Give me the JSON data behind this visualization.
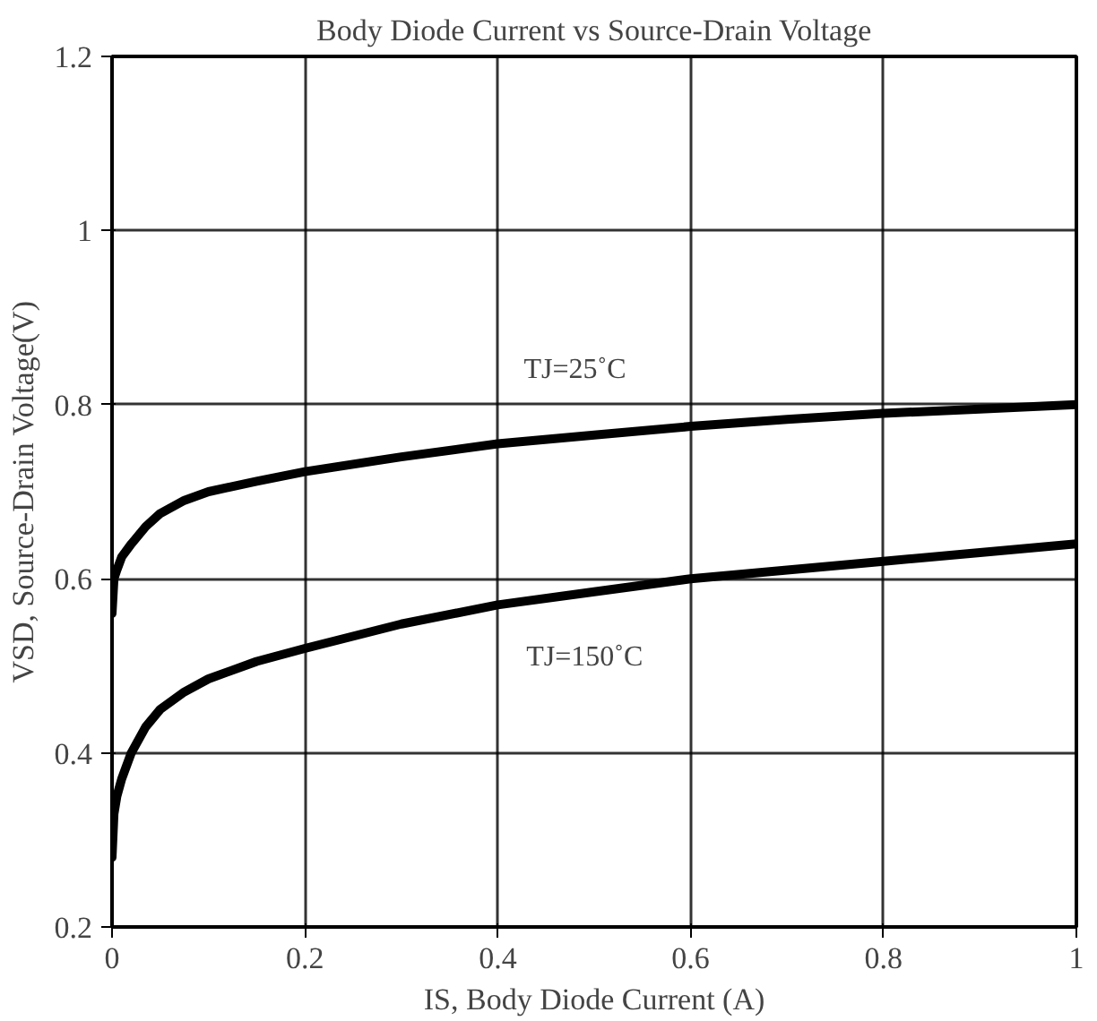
{
  "chart_data": {
    "type": "line",
    "title": "Body Diode Current vs Source-Drain Voltage",
    "xlabel": "IS, Body Diode Current (A)",
    "ylabel": "VSD, Source-Drain Voltage(V)",
    "xlim": [
      0,
      1
    ],
    "ylim": [
      0.2,
      1.2
    ],
    "xticks": [
      0,
      0.2,
      0.4,
      0.6,
      0.8,
      1
    ],
    "yticks": [
      0.2,
      0.4,
      0.6,
      0.8,
      1,
      1.2
    ],
    "grid": true,
    "series": [
      {
        "color": "#000000",
        "x": [
          0,
          0.002,
          0.005,
          0.01,
          0.02,
          0.035,
          0.05,
          0.075,
          0.1,
          0.15,
          0.2,
          0.3,
          0.4,
          0.5,
          0.6,
          0.7,
          0.8,
          0.9,
          1.0
        ],
        "values": [
          0.56,
          0.6,
          0.61,
          0.625,
          0.64,
          0.66,
          0.675,
          0.69,
          0.7,
          0.712,
          0.723,
          0.74,
          0.755,
          0.765,
          0.775,
          0.783,
          0.79,
          0.795,
          0.8
        ]
      },
      {
        "color": "#000000",
        "x": [
          0,
          0.002,
          0.005,
          0.01,
          0.02,
          0.035,
          0.05,
          0.075,
          0.1,
          0.15,
          0.2,
          0.3,
          0.4,
          0.5,
          0.6,
          0.7,
          0.8,
          0.9,
          1.0
        ],
        "values": [
          0.28,
          0.33,
          0.35,
          0.37,
          0.4,
          0.43,
          0.45,
          0.47,
          0.485,
          0.505,
          0.52,
          0.548,
          0.57,
          0.585,
          0.6,
          0.61,
          0.62,
          0.63,
          0.64
        ]
      }
    ],
    "annotations": [
      "TJ=25˚C",
      "TJ=150˚C"
    ]
  }
}
